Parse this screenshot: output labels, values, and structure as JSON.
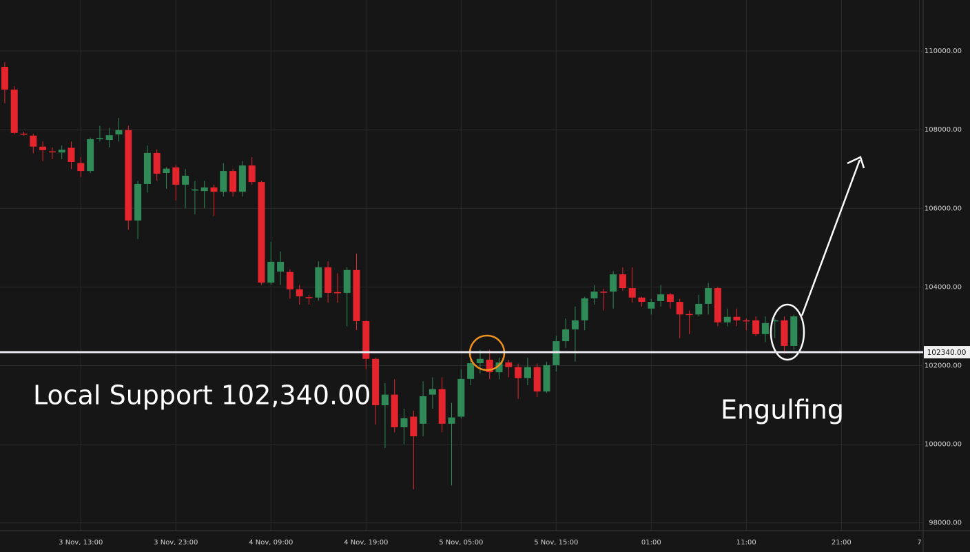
{
  "chart_data": {
    "type": "candlestick",
    "up_color": "#2f8a57",
    "down_color": "#e5252d",
    "grid": true,
    "x": [
      5,
      6,
      7,
      8,
      9,
      10,
      11,
      12,
      13,
      14,
      15,
      16,
      17,
      18,
      19,
      20,
      21,
      22,
      23,
      24,
      25,
      26,
      27,
      28,
      29,
      30,
      31,
      32,
      33,
      34,
      35,
      36,
      37,
      38,
      39,
      40,
      41,
      42,
      43,
      44,
      45,
      46,
      47,
      48,
      49,
      50,
      51,
      52,
      53,
      54,
      55,
      56,
      57,
      58,
      59,
      60,
      61,
      62,
      63,
      64,
      65,
      66,
      67,
      68,
      69,
      70,
      71,
      72,
      73,
      74,
      75,
      76,
      77,
      78,
      79,
      80,
      81,
      82,
      83,
      84,
      85,
      86,
      87,
      88
    ],
    "open": [
      109600,
      109020,
      107900,
      107850,
      107570,
      107450,
      107420,
      107540,
      107150,
      106950,
      107770,
      107740,
      107880,
      107990,
      105690,
      106620,
      107410,
      106900,
      107040,
      106600,
      106470,
      106440,
      106530,
      106420,
      106950,
      106420,
      107090,
      106670,
      104110,
      104390,
      104380,
      103940,
      103740,
      103730,
      104500,
      103870,
      103850,
      104430,
      103130,
      102170,
      100990,
      101260,
      100430,
      100700,
      100520,
      101260,
      101400,
      100520,
      100700,
      101660,
      102060,
      102150,
      101830,
      102080,
      101960,
      101680,
      101960,
      101340,
      102010,
      102620,
      102920,
      103150,
      103710,
      103880,
      103880,
      104320,
      103970,
      103730,
      103450,
      103640,
      103810,
      103620,
      103310,
      103300,
      103570,
      103970,
      103100,
      103240,
      103150,
      103150,
      102800,
      103130,
      103150,
      102500
    ],
    "high": [
      109720,
      109110,
      107950,
      107900,
      107700,
      107550,
      107600,
      107700,
      107300,
      107800,
      108100,
      108050,
      108300,
      108100,
      106700,
      107600,
      107500,
      107050,
      107100,
      107000,
      106700,
      106700,
      106600,
      107150,
      107000,
      107200,
      107300,
      106700,
      105150,
      104900,
      104450,
      104050,
      103800,
      104650,
      104650,
      104350,
      104500,
      104850,
      103150,
      102200,
      101550,
      101650,
      100900,
      100850,
      101600,
      101700,
      101700,
      101050,
      101900,
      102400,
      102400,
      102400,
      102200,
      102150,
      102050,
      102200,
      102050,
      102100,
      102750,
      103200,
      103500,
      103750,
      104050,
      103950,
      104400,
      104500,
      104500,
      103750,
      103700,
      104050,
      103850,
      103700,
      103400,
      103800,
      104100,
      104000,
      103450,
      103450,
      103200,
      103250,
      103250,
      103200,
      103250,
      103300
    ],
    "low": [
      108670,
      107880,
      107850,
      107400,
      107200,
      107250,
      107250,
      107000,
      106800,
      106900,
      107700,
      107550,
      107700,
      105450,
      105220,
      106400,
      106700,
      106500,
      106200,
      106000,
      105850,
      106000,
      105800,
      106300,
      106300,
      106300,
      106600,
      104050,
      104050,
      104050,
      103700,
      103550,
      103550,
      103650,
      103600,
      103600,
      103000,
      102900,
      101900,
      100500,
      99900,
      100300,
      100000,
      98850,
      100200,
      100900,
      100300,
      98950,
      100650,
      101500,
      101800,
      101650,
      101650,
      101700,
      101150,
      101500,
      101200,
      101300,
      101850,
      102450,
      102100,
      102900,
      103550,
      103400,
      103450,
      103900,
      103600,
      103500,
      103300,
      103500,
      103450,
      102700,
      102800,
      103250,
      103300,
      103000,
      103000,
      103000,
      102900,
      102750,
      102600,
      102700,
      102300,
      102400
    ],
    "close": [
      109020,
      107920,
      107880,
      107570,
      107480,
      107430,
      107490,
      107180,
      106950,
      107760,
      107790,
      107860,
      107990,
      105690,
      106620,
      107410,
      106880,
      107010,
      106600,
      106830,
      106480,
      106530,
      106420,
      106950,
      106420,
      107090,
      106670,
      104110,
      104640,
      104640,
      103940,
      103760,
      103720,
      104500,
      103850,
      103840,
      104430,
      103130,
      102170,
      100990,
      101260,
      100430,
      100660,
      100200,
      101220,
      101400,
      100520,
      100680,
      101660,
      102060,
      102170,
      101830,
      102080,
      101960,
      101680,
      101960,
      101340,
      102010,
      102620,
      102920,
      103150,
      103710,
      103880,
      103870,
      104320,
      103970,
      103730,
      103620,
      103620,
      103810,
      103620,
      103300,
      103290,
      103570,
      103970,
      103100,
      103240,
      103150,
      103140,
      102800,
      103080,
      103150,
      102500,
      103250
    ],
    "xlim": [
      4.5,
      101.6
    ],
    "xticks": [
      {
        "value": 13,
        "label": "3 Nov, 13:00"
      },
      {
        "value": 23,
        "label": "3 Nov, 23:00"
      },
      {
        "value": 33,
        "label": "4 Nov, 09:00"
      },
      {
        "value": 43,
        "label": "4 Nov, 19:00"
      },
      {
        "value": 53,
        "label": "5 Nov, 05:00"
      },
      {
        "value": 63,
        "label": "5 Nov, 15:00"
      },
      {
        "value": 73,
        "label": "01:00"
      },
      {
        "value": 83,
        "label": "11:00"
      },
      {
        "value": 93,
        "label": "21:00"
      },
      {
        "value": 101.2,
        "label": "7"
      }
    ],
    "ylim": [
      97800,
      111300
    ],
    "yticks": [
      {
        "value": 98000,
        "label": "98000.00"
      },
      {
        "value": 100000,
        "label": "100000.00"
      },
      {
        "value": 102000,
        "label": "102000.00"
      },
      {
        "value": 104000,
        "label": "104000.00"
      },
      {
        "value": 106000,
        "label": "106000.00"
      },
      {
        "value": 108000,
        "label": "108000.00"
      },
      {
        "value": 110000,
        "label": "110000.00"
      }
    ],
    "support_level": {
      "value": 102340,
      "label": "102340.00"
    },
    "annotations": [
      "Local Support 102,340.00",
      "Engulfing"
    ]
  }
}
